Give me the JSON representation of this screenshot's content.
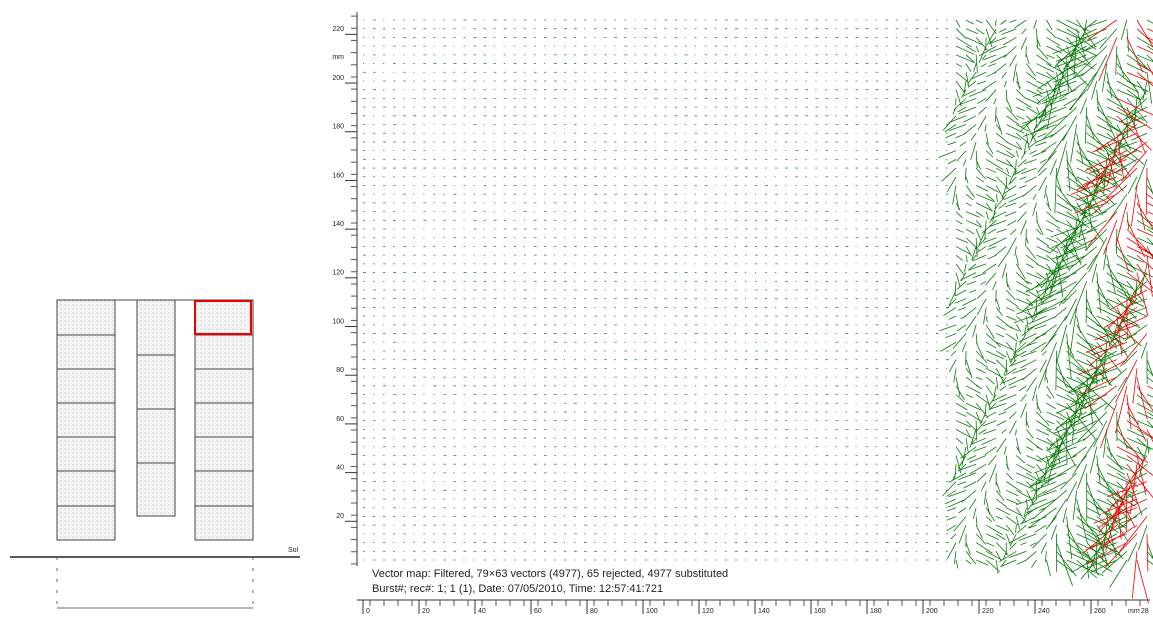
{
  "diagram": {
    "ground_label": "Sol"
  },
  "vector_map": {
    "y_axis": {
      "unit": "mm",
      "ticks": [
        20,
        40,
        60,
        80,
        100,
        120,
        140,
        160,
        180,
        200,
        220
      ],
      "lim": [
        0,
        230
      ]
    },
    "x_axis": {
      "unit": "mm",
      "ticks": [
        0,
        20,
        40,
        60,
        80,
        100,
        120,
        140,
        160,
        180,
        200,
        220,
        240,
        260
      ],
      "last_tick": "28",
      "lim": [
        0,
        280
      ]
    },
    "caption_line1": "Vector map: Filtered, 79×63 vectors (4977), 65 rejected, 4977 substituted",
    "caption_line2": "Burst#; rec#: 1; 1 (1), Date: 07/05/2010, Time: 12:57:41:721"
  }
}
